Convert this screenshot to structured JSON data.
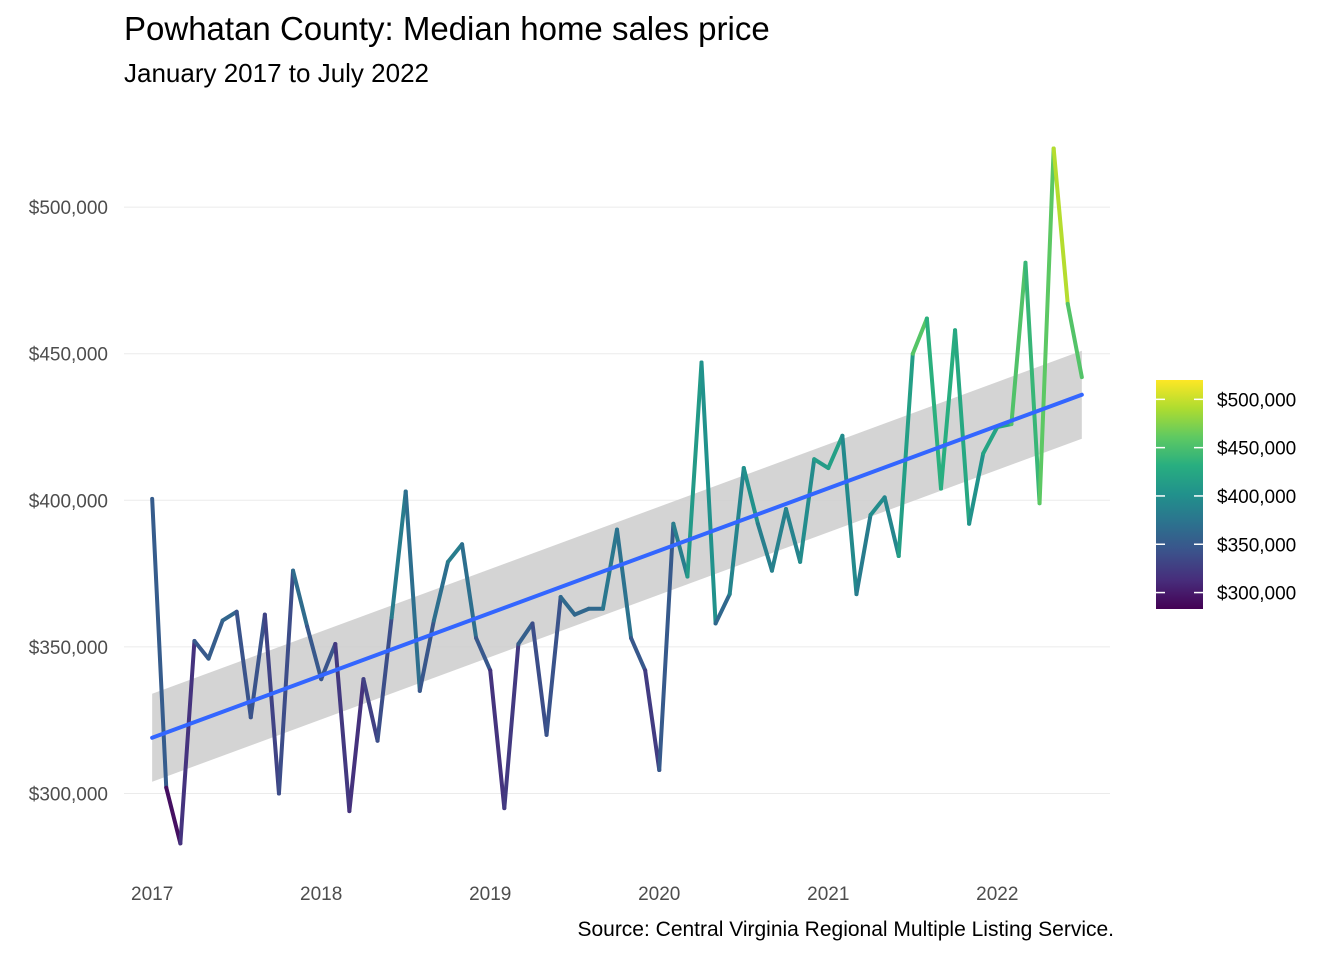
{
  "title": "Powhatan County: Median home sales price",
  "subtitle": "January 2017 to July 2022",
  "caption": "Source: Central Virginia Regional Multiple Listing Service.",
  "chart_data": {
    "type": "line",
    "x_axis": {
      "ticks": [
        "2017",
        "2018",
        "2019",
        "2020",
        "2021",
        "2022"
      ],
      "range": [
        "2016-11",
        "2022-09"
      ]
    },
    "y_axis": {
      "ticks": [
        300000,
        350000,
        400000,
        450000,
        500000
      ],
      "tick_labels": [
        "$300,000",
        "$350,000",
        "$400,000",
        "$450,000",
        "$500,000"
      ],
      "range": [
        278000,
        528000
      ]
    },
    "grid": true,
    "legend": {
      "position": "right",
      "type": "colorbar",
      "labels": [
        "$300,000",
        "$350,000",
        "$400,000",
        "$450,000",
        "$500,000"
      ],
      "range": [
        283000,
        520000
      ]
    },
    "series": [
      {
        "color_scale": "viridis",
        "points": [
          [
            "2017-01",
            400500
          ],
          [
            "2017-02",
            302000
          ],
          [
            "2017-03",
            283000
          ],
          [
            "2017-04",
            352000
          ],
          [
            "2017-05",
            346000
          ],
          [
            "2017-06",
            359000
          ],
          [
            "2017-07",
            362000
          ],
          [
            "2017-08",
            326000
          ],
          [
            "2017-09",
            361000
          ],
          [
            "2017-10",
            300000
          ],
          [
            "2017-11",
            376000
          ],
          [
            "2017-12",
            357000
          ],
          [
            "2018-01",
            339000
          ],
          [
            "2018-02",
            351000
          ],
          [
            "2018-03",
            294000
          ],
          [
            "2018-04",
            339000
          ],
          [
            "2018-05",
            318000
          ],
          [
            "2018-06",
            360000
          ],
          [
            "2018-07",
            403000
          ],
          [
            "2018-08",
            335000
          ],
          [
            "2018-09",
            359000
          ],
          [
            "2018-10",
            379000
          ],
          [
            "2018-11",
            385000
          ],
          [
            "2018-12",
            353000
          ],
          [
            "2019-01",
            342000
          ],
          [
            "2019-02",
            295000
          ],
          [
            "2019-03",
            351000
          ],
          [
            "2019-04",
            358000
          ],
          [
            "2019-05",
            320000
          ],
          [
            "2019-06",
            367000
          ],
          [
            "2019-07",
            361000
          ],
          [
            "2019-08",
            363000
          ],
          [
            "2019-09",
            363000
          ],
          [
            "2019-10",
            390000
          ],
          [
            "2019-11",
            353000
          ],
          [
            "2019-12",
            342000
          ],
          [
            "2020-01",
            308000
          ],
          [
            "2020-02",
            392000
          ],
          [
            "2020-03",
            374000
          ],
          [
            "2020-04",
            447000
          ],
          [
            "2020-05",
            358000
          ],
          [
            "2020-06",
            368000
          ],
          [
            "2020-07",
            411000
          ],
          [
            "2020-08",
            392000
          ],
          [
            "2020-09",
            376000
          ],
          [
            "2020-10",
            397000
          ],
          [
            "2020-11",
            379000
          ],
          [
            "2020-12",
            414000
          ],
          [
            "2021-01",
            411000
          ],
          [
            "2021-02",
            422000
          ],
          [
            "2021-03",
            368000
          ],
          [
            "2021-04",
            395000
          ],
          [
            "2021-05",
            401000
          ],
          [
            "2021-06",
            381000
          ],
          [
            "2021-07",
            450000
          ],
          [
            "2021-08",
            462000
          ],
          [
            "2021-09",
            404000
          ],
          [
            "2021-10",
            458000
          ],
          [
            "2021-11",
            392000
          ],
          [
            "2021-12",
            416000
          ],
          [
            "2022-01",
            425000
          ],
          [
            "2022-02",
            426000
          ],
          [
            "2022-03",
            481000
          ],
          [
            "2022-04",
            399000
          ],
          [
            "2022-05",
            520000
          ],
          [
            "2022-06",
            467000
          ],
          [
            "2022-07",
            442000
          ]
        ]
      },
      {
        "type": "linear-trend",
        "color": "#3366ff",
        "start": [
          "2017-01",
          319000
        ],
        "end": [
          "2022-07",
          436000
        ],
        "band_start": [
          304000,
          334000
        ],
        "band_end": [
          421000,
          451000
        ]
      }
    ]
  }
}
